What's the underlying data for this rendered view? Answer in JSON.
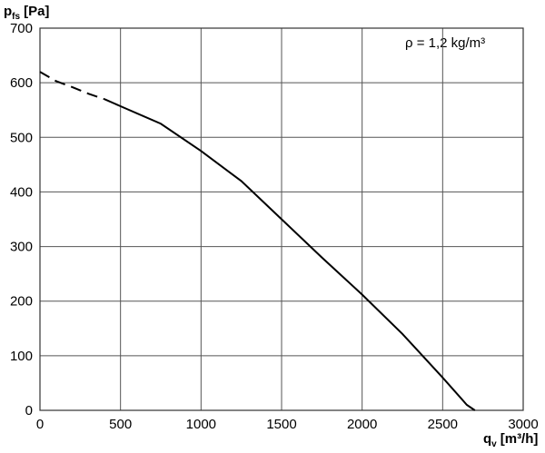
{
  "chart_data": {
    "type": "line",
    "y_label": {
      "symbol": "p",
      "subscript": "fs",
      "unit": "[Pa]"
    },
    "x_label": {
      "symbol": "q",
      "subscript": "v",
      "unit": "[m³/h]"
    },
    "annotation": "ρ = 1,2 kg/m³",
    "x": [
      0,
      100,
      200,
      300,
      400,
      500,
      750,
      1000,
      1250,
      1500,
      1750,
      2000,
      2250,
      2500,
      2650,
      2700
    ],
    "series": [
      {
        "color": "#000000",
        "dash": true,
        "values": [
          620,
          603,
          592,
          580,
          570,
          null,
          null,
          null,
          null,
          null,
          null,
          null,
          null,
          null,
          null,
          null
        ]
      },
      {
        "color": "#000000",
        "dash": false,
        "values": [
          null,
          null,
          null,
          null,
          570,
          557,
          525,
          475,
          420,
          350,
          280,
          212,
          140,
          60,
          10,
          0
        ]
      }
    ],
    "xlim": [
      0,
      3000
    ],
    "xticks": [
      0,
      500,
      1000,
      1500,
      2000,
      2500,
      3000
    ],
    "ylim": [
      0,
      700
    ],
    "yticks": [
      0,
      100,
      200,
      300,
      400,
      500,
      600,
      700
    ],
    "grid": true
  }
}
